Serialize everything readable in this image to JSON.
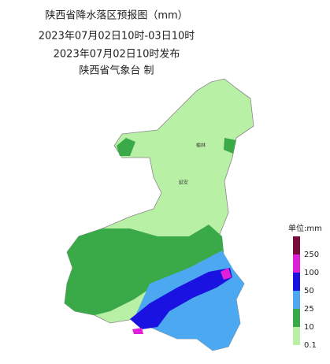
{
  "header": {
    "lines": [
      "陕西省降水落区预报图（mm）",
      "2023年07月02日10时-03日10时",
      "2023年07月02日10时发布",
      "陕西省气象台 制"
    ]
  },
  "map": {
    "cities": [
      "榆林",
      "延安"
    ]
  },
  "legend": {
    "unit": "单位:mm",
    "items": [
      {
        "label": "250",
        "color": "#7a0a3c"
      },
      {
        "label": "100",
        "color": "#e020d8"
      },
      {
        "label": "50",
        "color": "#1a12e0"
      },
      {
        "label": "25",
        "color": "#4ca8f0"
      },
      {
        "label": "10",
        "color": "#3aaa48"
      },
      {
        "label": "0.1",
        "color": "#b8f0a6"
      }
    ]
  }
}
